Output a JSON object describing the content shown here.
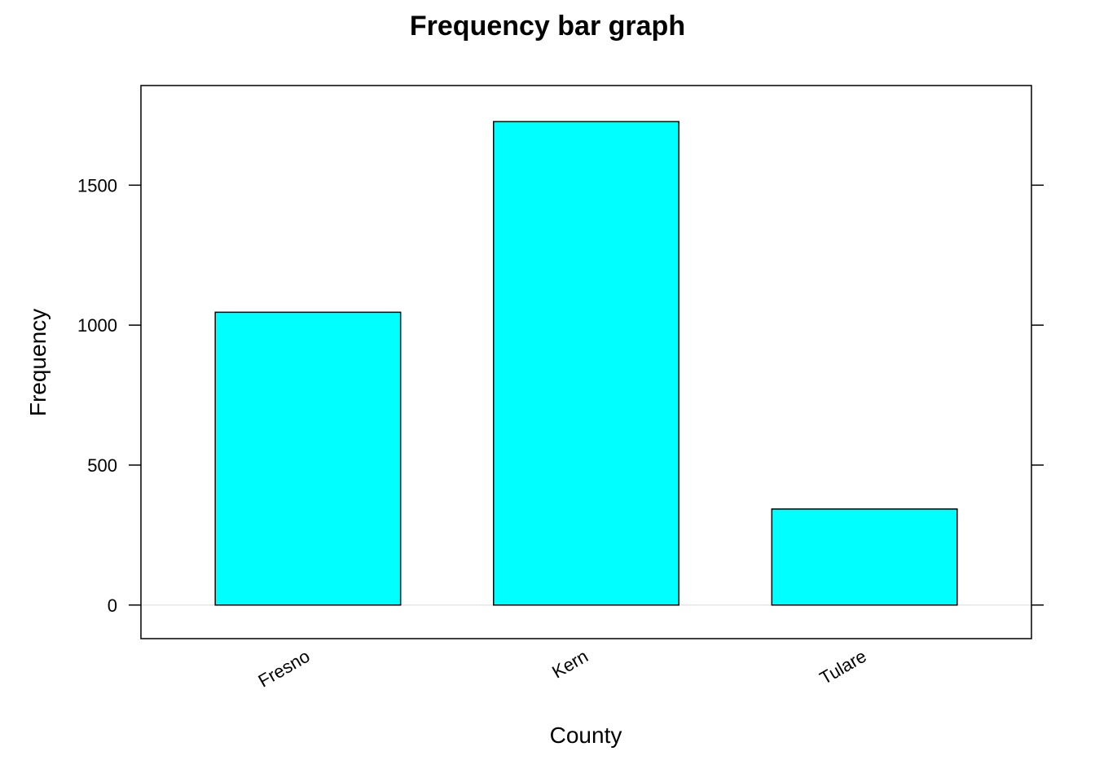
{
  "chart_data": {
    "type": "bar",
    "title": "Frequency bar graph",
    "xlabel": "County",
    "ylabel": "Frequency",
    "categories": [
      "Fresno",
      "Kern",
      "Tulare"
    ],
    "values": [
      1046,
      1727,
      343
    ],
    "ylim": [
      -120,
      1856
    ],
    "yticks": [
      0,
      500,
      1000,
      1500
    ],
    "ytick_labels": [
      "0",
      "500",
      "1000",
      "1500"
    ],
    "bar_color": "#00FFFF",
    "bar_edge_color": "#000000",
    "zero_line_color": "#E6E6E6",
    "grid": false,
    "legend": "none"
  }
}
